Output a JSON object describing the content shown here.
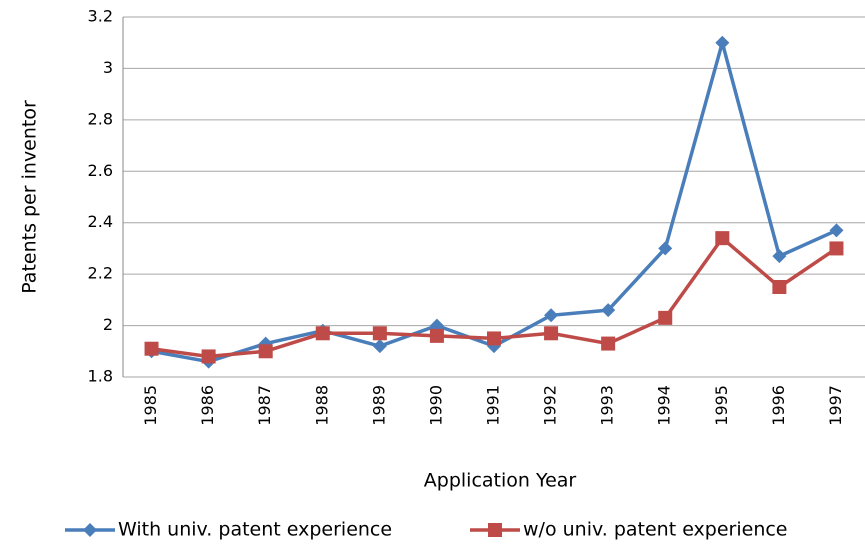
{
  "chart_data": {
    "type": "line",
    "x_label": "Application Year",
    "y_label": "Patents per inventor",
    "categories": [
      "1985",
      "1986",
      "1987",
      "1988",
      "1989",
      "1990",
      "1991",
      "1992",
      "1993",
      "1994",
      "1995",
      "1996",
      "1997"
    ],
    "series": [
      {
        "name": "With univ. patent experience",
        "color": "#4a7ebb",
        "marker": "diamond",
        "values": [
          1.9,
          1.86,
          1.93,
          1.98,
          1.92,
          2.0,
          1.92,
          2.04,
          2.06,
          2.3,
          3.1,
          2.27,
          2.37
        ]
      },
      {
        "name": "w/o univ. patent experience",
        "color": "#be4b48",
        "marker": "square",
        "values": [
          1.91,
          1.88,
          1.9,
          1.97,
          1.97,
          1.96,
          1.95,
          1.97,
          1.93,
          2.03,
          2.34,
          2.15,
          2.3
        ]
      }
    ],
    "ylim": [
      1.8,
      3.2
    ],
    "yticks": [
      1.8,
      2,
      2.2,
      2.4,
      2.6,
      2.8,
      3,
      3.2
    ],
    "grid": true,
    "legend": "bottom"
  }
}
